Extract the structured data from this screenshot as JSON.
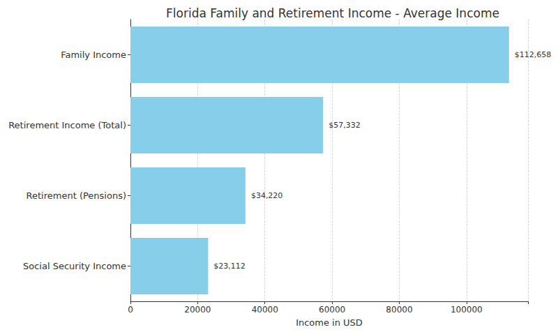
{
  "chart_data": {
    "type": "bar",
    "orientation": "horizontal",
    "title": "Florida Family and Retirement Income - Average Income",
    "x_label": "Income in USD",
    "categories": [
      "Family Income",
      "Retirement Income (Total)",
      "Retirement (Pensions)",
      "Social Security Income"
    ],
    "values": [
      112658,
      57332,
      34220,
      23112
    ],
    "value_labels": [
      "$112,658",
      "$57,332",
      "$34,220",
      "$23,112"
    ],
    "data_labels": true,
    "color": "#87ceeb",
    "xlim": [
      0,
      118300
    ],
    "xticks": [
      0,
      20000,
      40000,
      60000,
      80000,
      100000
    ],
    "grid": true
  }
}
